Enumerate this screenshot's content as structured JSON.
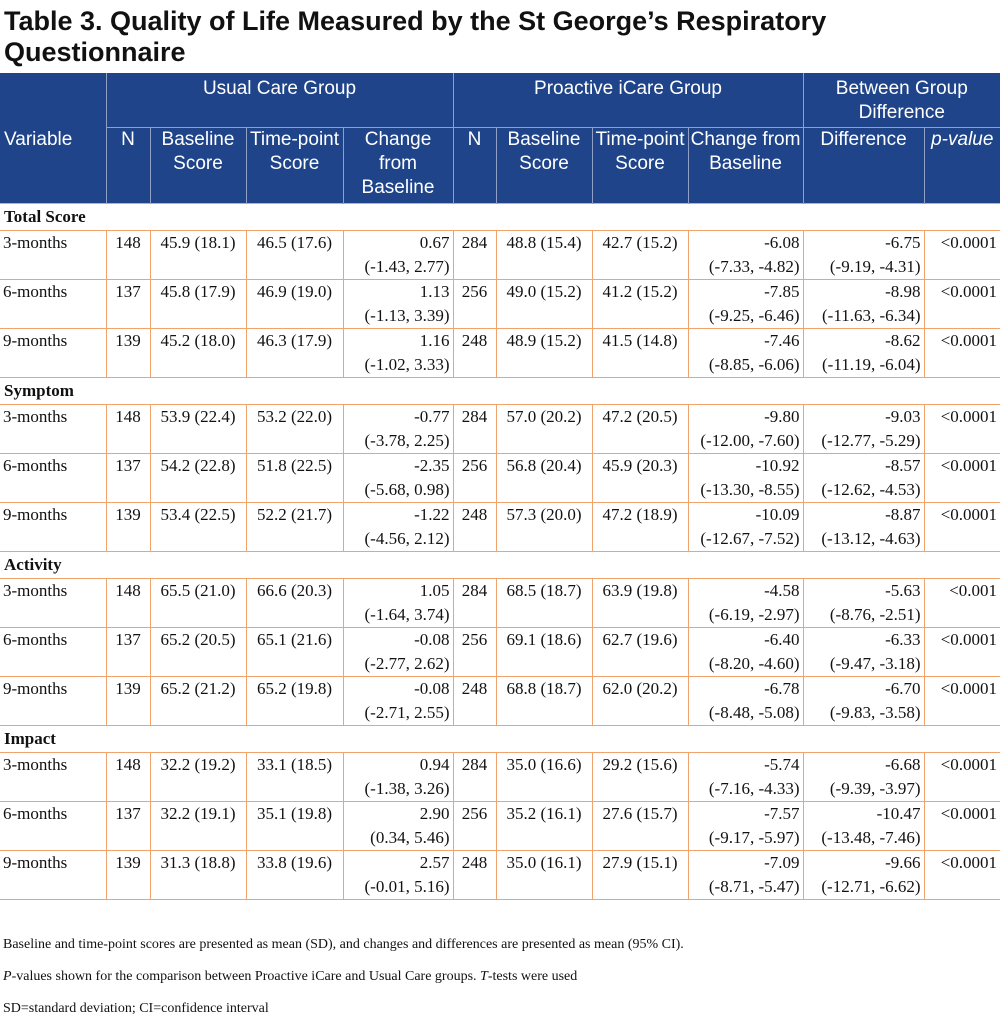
{
  "title": "Table 3. Quality of Life Measured by the St George’s Respiratory Questionnaire",
  "header": {
    "variable": "Variable",
    "group1": "Usual Care Group",
    "group2": "Proactive iCare Group",
    "group3": "Between Group Difference",
    "n": "N",
    "baseline": "Baseline Score",
    "timepoint": "Time-point Score",
    "change": "Change from Baseline",
    "difference": "Difference",
    "pvalue": "p-value"
  },
  "sections": [
    {
      "name": "Total Score",
      "rows": [
        {
          "label": "3-months",
          "n1": "148",
          "b1": "45.9 (18.1)",
          "t1": "46.5  (17.6)",
          "c1": "0.67",
          "c1ci": "(-1.43, 2.77)",
          "n2": "284",
          "b2": "48.8 (15.4)",
          "t2": "42.7 (15.2)",
          "c2": "-6.08",
          "c2ci": "(-7.33, -4.82)",
          "d": "-6.75",
          "dci": "(-9.19, -4.31)",
          "p": "<0.0001"
        },
        {
          "label": "6-months",
          "n1": "137",
          "b1": "45.8 (17.9)",
          "t1": "46.9 (19.0)",
          "c1": "1.13",
          "c1ci": "(-1.13, 3.39)",
          "n2": "256",
          "b2": "49.0 (15.2)",
          "t2": "41.2 (15.2)",
          "c2": "-7.85",
          "c2ci": "(-9.25, -6.46)",
          "d": "-8.98",
          "dci": "(-11.63, -6.34)",
          "p": "<0.0001"
        },
        {
          "label": "9-months",
          "n1": "139",
          "b1": "45.2 (18.0)",
          "t1": "46.3 (17.9)",
          "c1": "1.16",
          "c1ci": "(-1.02, 3.33)",
          "n2": "248",
          "b2": "48.9 (15.2)",
          "t2": "41.5 (14.8)",
          "c2": "-7.46",
          "c2ci": "(-8.85, -6.06)",
          "d": "-8.62",
          "dci": "(-11.19, -6.04)",
          "p": "<0.0001"
        }
      ]
    },
    {
      "name": "Symptom",
      "rows": [
        {
          "label": "3-months",
          "n1": "148",
          "b1": "53.9 (22.4)",
          "t1": "53.2 (22.0)",
          "c1": "-0.77",
          "c1ci": "(-3.78, 2.25)",
          "n2": "284",
          "b2": "57.0 (20.2)",
          "t2": "47.2 (20.5)",
          "c2": "-9.80",
          "c2ci": "(-12.00, -7.60)",
          "d": "-9.03",
          "dci": "(-12.77, -5.29)",
          "p": "<0.0001"
        },
        {
          "label": "6-months",
          "n1": "137",
          "b1": "54.2 (22.8)",
          "t1": "51.8 (22.5)",
          "c1": "-2.35",
          "c1ci": "(-5.68, 0.98)",
          "n2": "256",
          "b2": "56.8 (20.4)",
          "t2": "45.9 (20.3)",
          "c2": "-10.92",
          "c2ci": "(-13.30, -8.55)",
          "d": "-8.57",
          "dci": "(-12.62, -4.53)",
          "p": "<0.0001"
        },
        {
          "label": "9-months",
          "n1": "139",
          "b1": "53.4 (22.5)",
          "t1": "52.2 (21.7)",
          "c1": "-1.22",
          "c1ci": "(-4.56, 2.12)",
          "n2": "248",
          "b2": "57.3 (20.0)",
          "t2": "47.2 (18.9)",
          "c2": "-10.09",
          "c2ci": "(-12.67, -7.52)",
          "d": "-8.87",
          "dci": "(-13.12, -4.63)",
          "p": "<0.0001"
        }
      ]
    },
    {
      "name": "Activity",
      "rows": [
        {
          "label": "3-months",
          "n1": "148",
          "b1": "65.5 (21.0)",
          "t1": "66.6 (20.3)",
          "c1": "1.05",
          "c1ci": "(-1.64, 3.74)",
          "n2": "284",
          "b2": "68.5 (18.7)",
          "t2": "63.9 (19.8)",
          "c2": "-4.58",
          "c2ci": "(-6.19, -2.97)",
          "d": "-5.63",
          "dci": "(-8.76, -2.51)",
          "p": "<0.001"
        },
        {
          "label": "6-months",
          "n1": "137",
          "b1": "65.2 (20.5)",
          "t1": "65.1 (21.6)",
          "c1": "-0.08",
          "c1ci": "(-2.77, 2.62)",
          "n2": "256",
          "b2": "69.1 (18.6)",
          "t2": "62.7 (19.6)",
          "c2": "-6.40",
          "c2ci": "(-8.20, -4.60)",
          "d": "-6.33",
          "dci": "(-9.47, -3.18)",
          "p": "<0.0001"
        },
        {
          "label": "9-months",
          "n1": "139",
          "b1": "65.2 (21.2)",
          "t1": "65.2 (19.8)",
          "c1": "-0.08",
          "c1ci": "(-2.71, 2.55)",
          "n2": "248",
          "b2": "68.8 (18.7)",
          "t2": "62.0 (20.2)",
          "c2": "-6.78",
          "c2ci": "(-8.48, -5.08)",
          "d": "-6.70",
          "dci": "(-9.83, -3.58)",
          "p": "<0.0001"
        }
      ]
    },
    {
      "name": "Impact",
      "rows": [
        {
          "label": "3-months",
          "n1": "148",
          "b1": "32.2 (19.2)",
          "t1": "33.1 (18.5)",
          "c1": "0.94",
          "c1ci": "(-1.38, 3.26)",
          "n2": "284",
          "b2": "35.0 (16.6)",
          "t2": "29.2 (15.6)",
          "c2": "-5.74",
          "c2ci": "(-7.16, -4.33)",
          "d": "-6.68",
          "dci": "(-9.39, -3.97)",
          "p": "<0.0001"
        },
        {
          "label": "6-months",
          "n1": "137",
          "b1": "32.2 (19.1)",
          "t1": "35.1 (19.8)",
          "c1": "2.90",
          "c1ci": "(0.34, 5.46)",
          "n2": "256",
          "b2": "35.2 (16.1)",
          "t2": "27.6 (15.7)",
          "c2": "-7.57",
          "c2ci": "(-9.17, -5.97)",
          "d": "-10.47",
          "dci": "(-13.48, -7.46)",
          "p": "<0.0001"
        },
        {
          "label": "9-months",
          "n1": "139",
          "b1": "31.3 (18.8)",
          "t1": "33.8 (19.6)",
          "c1": "2.57",
          "c1ci": "(-0.01, 5.16)",
          "n2": "248",
          "b2": "35.0 (16.1)",
          "t2": "27.9 (15.1)",
          "c2": "-7.09",
          "c2ci": "(-8.71, -5.47)",
          "d": "-9.66",
          "dci": "(-12.71, -6.62)",
          "p": "<0.0001"
        }
      ]
    }
  ],
  "notes": {
    "note1": "Baseline and time-point scores are presented as mean (SD), and changes and differences are presented as mean (95% CI).",
    "note2_p": "P",
    "note2_a": "-values shown for the comparison between Proactive iCare and Usual Care groups. ",
    "note2_t": "T",
    "note2_b": "-tests were used",
    "note3": "SD=standard deviation; CI=confidence interval"
  }
}
